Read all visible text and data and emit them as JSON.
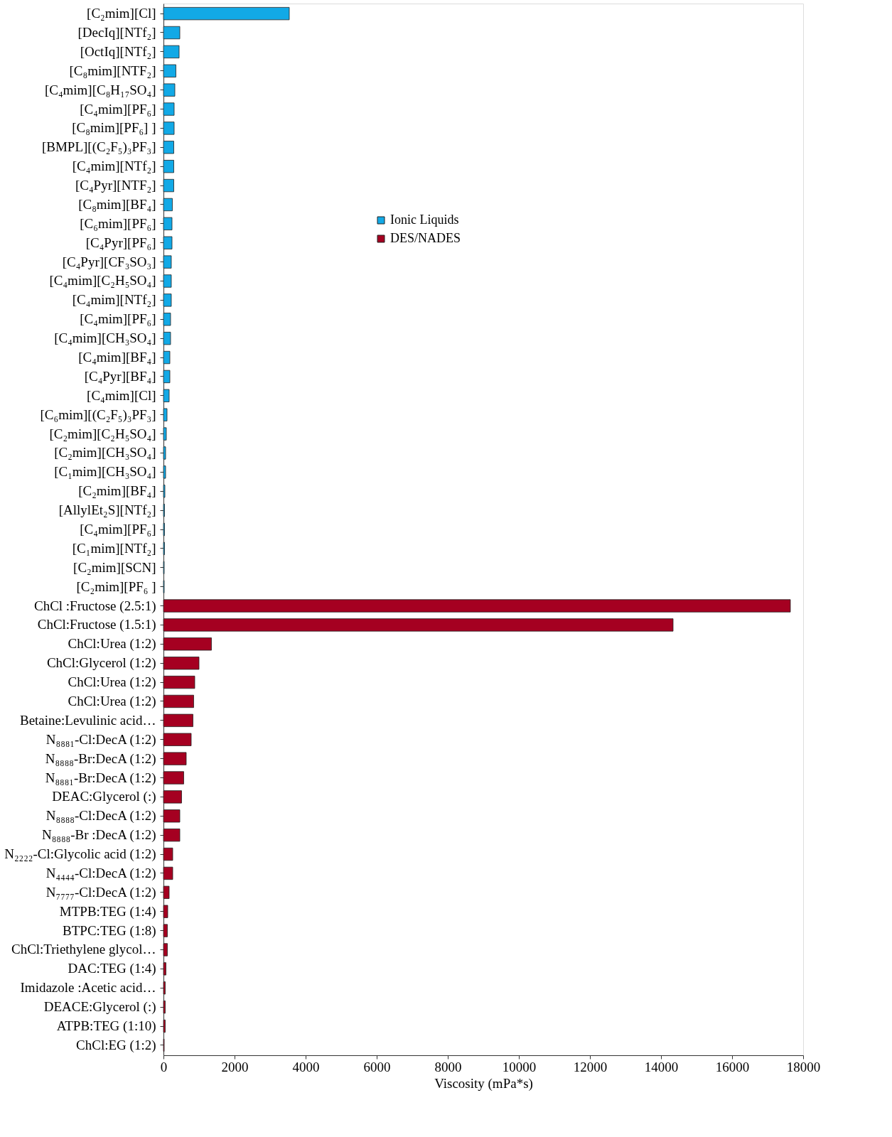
{
  "chart_data": {
    "type": "bar",
    "orientation": "horizontal",
    "xlabel": "Viscosity (mPa*s)",
    "categories": [
      "[C₂mim][Cl]",
      "[DecIq][NTf₂]",
      "[OctIq][NTf₂]",
      "[C₈mim][NTF₂]",
      "[C₄mim][C₈H₁₇SO₄]",
      "[C₄mim][PF₆]",
      "[C₈mim][PF₆] ]",
      "[BMPL][(C₂F₅)₃PF₃]",
      "[C₄mim][NTf₂]",
      "[C₄Pyr][NTF₂]",
      "[C₈mim][BF₄]",
      "[C₆mim][PF₆]",
      "[C₄Pyr][PF₆]",
      "[C₄Pyr][CF₃SO₃]",
      "[C₄mim][C₂H₅SO₄]",
      "[C₄mim][NTf₂]",
      "[C₄mim][PF₆]",
      "[C₄mim][CH₃SO₄]",
      "[C₄mim][BF₄]",
      "[C₄Pyr][BF₄]",
      "[C₄mim][Cl]",
      "[C₆mim][(C₂F₅)₃PF₃]",
      "[C₂mim][C₂H₅SO₄]",
      "[C₂mim][CH₃SO₄]",
      "[C₁mim][CH₃SO₄]",
      "[C₂mim][BF₄]",
      "[AllylEt₂S][NTf₂]",
      "[C₄mim][PF₆]",
      "[C₁mim][NTf₂]",
      "[C₂mim][SCN]",
      "[C₂mim][PF₆ ]",
      "ChCl :Fructose (2.5:1)",
      "ChCl:Fructose (1.5:1)",
      "ChCl:Urea (1:2)",
      "ChCl:Glycerol (1:2)",
      "ChCl:Urea (1:2)",
      "ChCl:Urea (1:2)",
      "Betaine:Levulinic acid…",
      "N₈₈₈₁-Cl:DecA (1:2)",
      "N₈₈₈₈-Br:DecA (1:2)",
      "N₈₈₈₁-Br:DecA (1:2)",
      "DEAC:Glycerol (:)",
      "N₈₈₈₈-Cl:DecA (1:2)",
      "N₈₈₈₈-Br :DecA (1:2)",
      "N₂₂₂₂-Cl:Glycolic acid (1:2)",
      "N₄₄₄₄-Cl:DecA  (1:2)",
      "N₇₇₇₇-Cl:DecA (1:2)",
      "MTPB:TEG (1:4)",
      "BTPC:TEG (1:8)",
      "ChCl:Triethylene glycol…",
      "DAC:TEG (1:4)",
      "Imidazole :Acetic acid…",
      "DEACE:Glycerol (:)",
      "ATPB:TEG (1:10)",
      "ChCl:EG (1:2)"
    ],
    "series": [
      {
        "name": "Ionic Liquids",
        "color": "#12a9e6",
        "values": [
          3540,
          460,
          440,
          350,
          320,
          300,
          300,
          290,
          290,
          290,
          250,
          240,
          240,
          220,
          220,
          220,
          200,
          200,
          180,
          180,
          160,
          100,
          80,
          60,
          60,
          40,
          30,
          30,
          30,
          20,
          20,
          null,
          null,
          null,
          null,
          null,
          null,
          null,
          null,
          null,
          null,
          null,
          null,
          null,
          null,
          null,
          null,
          null,
          null,
          null,
          null,
          null,
          null,
          null,
          null
        ]
      },
      {
        "name": "DES/NADES",
        "color": "#a50021",
        "values": [
          null,
          null,
          null,
          null,
          null,
          null,
          null,
          null,
          null,
          null,
          null,
          null,
          null,
          null,
          null,
          null,
          null,
          null,
          null,
          null,
          null,
          null,
          null,
          null,
          null,
          null,
          null,
          null,
          null,
          null,
          null,
          17640,
          14340,
          1350,
          1000,
          880,
          850,
          830,
          780,
          640,
          570,
          510,
          460,
          460,
          260,
          260,
          160,
          120,
          110,
          110,
          70,
          50,
          50,
          50,
          20
        ]
      }
    ],
    "xlim": [
      0,
      18000
    ],
    "xticks": [
      0,
      2000,
      4000,
      6000,
      8000,
      10000,
      12000,
      14000,
      16000,
      18000
    ],
    "grid": false,
    "legend": "top"
  }
}
